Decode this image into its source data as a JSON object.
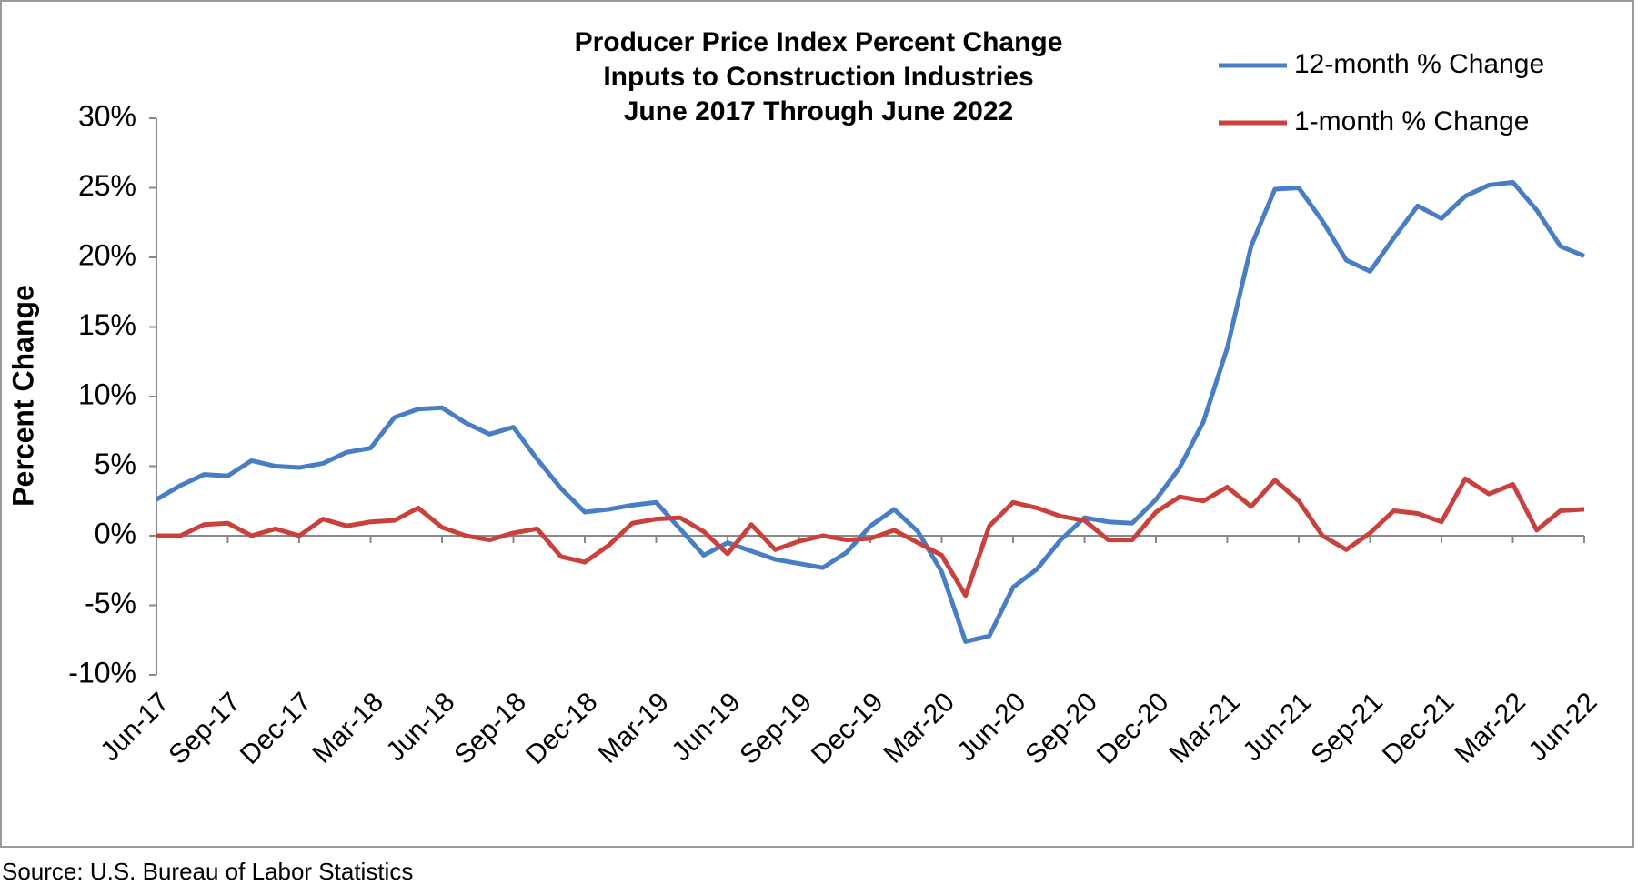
{
  "chart_data": {
    "type": "line",
    "title": [
      "Producer Price Index Percent Change",
      "Inputs to Construction Industries",
      "June 2017 Through June 2022"
    ],
    "y_label": "Percent Change",
    "source": "Source: U.S. Bureau of Labor Statistics",
    "categories": [
      "Jun-17",
      null,
      null,
      "Sep-17",
      null,
      null,
      "Dec-17",
      null,
      null,
      "Mar-18",
      null,
      null,
      "Jun-18",
      null,
      null,
      "Sep-18",
      null,
      null,
      "Dec-18",
      null,
      null,
      "Mar-19",
      null,
      null,
      "Jun-19",
      null,
      null,
      "Sep-19",
      null,
      null,
      "Dec-19",
      null,
      null,
      "Mar-20",
      null,
      null,
      "Jun-20",
      null,
      null,
      "Sep-20",
      null,
      null,
      "Dec-20",
      null,
      null,
      "Mar-21",
      null,
      null,
      "Jun-21",
      null,
      null,
      "Sep-21",
      null,
      null,
      "Dec-21",
      null,
      null,
      "Mar-22",
      null,
      null,
      "Jun-22"
    ],
    "series": [
      {
        "name": "12-month % Change",
        "color": "#4a7ec4",
        "values": [
          2.6,
          3.6,
          4.4,
          4.3,
          5.4,
          5.0,
          4.9,
          5.2,
          6.0,
          6.3,
          8.5,
          9.1,
          9.2,
          8.1,
          7.3,
          7.8,
          5.5,
          3.4,
          1.7,
          1.9,
          2.2,
          2.4,
          0.5,
          -1.4,
          -0.5,
          -1.1,
          -1.7,
          -2.0,
          -2.3,
          -1.2,
          0.7,
          1.9,
          0.3,
          -2.6,
          -7.6,
          -7.2,
          -3.7,
          -2.4,
          -0.3,
          1.3,
          1.0,
          0.9,
          2.6,
          4.9,
          8.2,
          13.5,
          20.8,
          24.9,
          25.0,
          22.6,
          19.8,
          19.0,
          21.4,
          23.7,
          22.8,
          24.4,
          25.2,
          25.4,
          23.4,
          20.8,
          20.1
        ]
      },
      {
        "name": "1-month % Change",
        "color": "#c9413d",
        "values": [
          0.0,
          0.0,
          0.8,
          0.9,
          0.0,
          0.5,
          0.0,
          1.2,
          0.7,
          1.0,
          1.1,
          2.0,
          0.6,
          0.0,
          -0.3,
          0.2,
          0.5,
          -1.5,
          -1.9,
          -0.7,
          0.9,
          1.2,
          1.3,
          0.3,
          -1.3,
          0.8,
          -1.0,
          -0.4,
          0.0,
          -0.3,
          -0.2,
          0.4,
          -0.5,
          -1.4,
          -4.3,
          0.7,
          2.4,
          2.0,
          1.4,
          1.1,
          -0.3,
          -0.3,
          1.7,
          2.8,
          2.5,
          3.5,
          2.1,
          4.0,
          2.5,
          0.0,
          -1.0,
          0.2,
          1.8,
          1.6,
          1.0,
          4.1,
          3.0,
          3.7,
          0.4,
          1.8,
          1.9
        ]
      }
    ],
    "ylim": [
      -10,
      30
    ],
    "yticks": [
      {
        "value": -10,
        "label": "-10%"
      },
      {
        "value": -5,
        "label": "-5%"
      },
      {
        "value": 0,
        "label": "0%"
      },
      {
        "value": 5,
        "label": "5%"
      },
      {
        "value": 10,
        "label": "10%"
      },
      {
        "value": 15,
        "label": "15%"
      },
      {
        "value": 20,
        "label": "20%"
      },
      {
        "value": 25,
        "label": "25%"
      },
      {
        "value": 30,
        "label": "30%"
      }
    ],
    "grid": false,
    "legend": "top-right"
  }
}
